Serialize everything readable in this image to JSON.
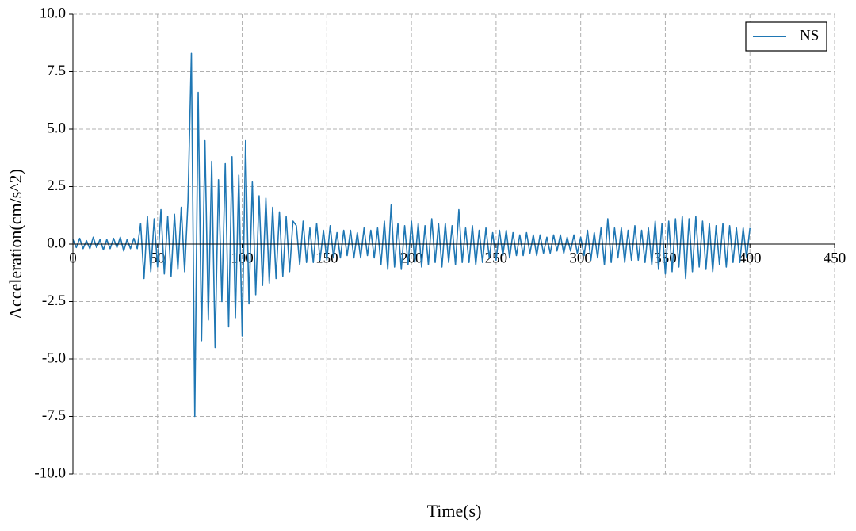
{
  "chart_data": {
    "type": "line",
    "x_label": "Time(s)",
    "y_label": "Acceleration(cm/s^2)",
    "xlim": [
      0,
      450
    ],
    "xticks": [
      0,
      50,
      100,
      150,
      200,
      250,
      300,
      350,
      400,
      450
    ],
    "ylim": [
      -10,
      10
    ],
    "yticks": [
      {
        "value": 10,
        "label": "10.0"
      },
      7.5,
      {
        "value": 5,
        "label": "5.0"
      },
      2.5,
      {
        "value": 0,
        "label": "0.0"
      },
      -2.5,
      {
        "value": -5,
        "label": "-5.0"
      },
      -7.5,
      {
        "value": -10,
        "label": "-10.0"
      }
    ],
    "grid": true,
    "legend": "upper right",
    "x": [
      0,
      2,
      4,
      6,
      8,
      10,
      12,
      14,
      16,
      18,
      20,
      22,
      24,
      26,
      28,
      30,
      32,
      34,
      36,
      38,
      40,
      42,
      44,
      46,
      48,
      50,
      52,
      54,
      56,
      58,
      60,
      62,
      64,
      66,
      68,
      70,
      72,
      74,
      76,
      78,
      80,
      82,
      84,
      86,
      88,
      90,
      92,
      94,
      96,
      98,
      100,
      102,
      104,
      106,
      108,
      110,
      112,
      114,
      116,
      118,
      120,
      122,
      124,
      126,
      128,
      130,
      132,
      134,
      136,
      138,
      140,
      142,
      144,
      146,
      148,
      150,
      152,
      154,
      156,
      158,
      160,
      162,
      164,
      166,
      168,
      170,
      172,
      174,
      176,
      178,
      180,
      182,
      184,
      186,
      188,
      190,
      192,
      194,
      196,
      198,
      200,
      202,
      204,
      206,
      208,
      210,
      212,
      214,
      216,
      218,
      220,
      222,
      224,
      226,
      228,
      230,
      232,
      234,
      236,
      238,
      240,
      242,
      244,
      246,
      248,
      250,
      252,
      254,
      256,
      258,
      260,
      262,
      264,
      266,
      268,
      270,
      272,
      274,
      276,
      278,
      280,
      282,
      284,
      286,
      288,
      290,
      292,
      294,
      296,
      298,
      300,
      302,
      304,
      306,
      308,
      310,
      312,
      314,
      316,
      318,
      320,
      322,
      324,
      326,
      328,
      330,
      332,
      334,
      336,
      338,
      340,
      342,
      344,
      346,
      348,
      350,
      352,
      354,
      356,
      358,
      360,
      362,
      364,
      366,
      368,
      370,
      372,
      374,
      376,
      378,
      380,
      382,
      384,
      386,
      388,
      390,
      392,
      394,
      396,
      398,
      400
    ],
    "series": [
      {
        "name": "NS",
        "color": "#1f77b4",
        "values": [
          0.2,
          -0.15,
          0.25,
          -0.2,
          0.15,
          -0.2,
          0.3,
          -0.15,
          0.2,
          -0.25,
          0.2,
          -0.2,
          0.25,
          -0.15,
          0.3,
          -0.3,
          0.2,
          -0.2,
          0.25,
          -0.2,
          0.9,
          -1.5,
          1.2,
          -1.2,
          1.1,
          -1.0,
          1.5,
          -1.3,
          1.2,
          -1.4,
          1.3,
          -1.1,
          1.6,
          -1.2,
          1.9,
          8.3,
          -7.5,
          6.6,
          -4.2,
          4.5,
          -3.3,
          3.6,
          -4.5,
          2.8,
          -2.5,
          3.5,
          -3.6,
          3.8,
          -3.2,
          3.0,
          -4.0,
          4.5,
          -2.6,
          2.7,
          -2.2,
          2.1,
          -1.8,
          2.0,
          -1.7,
          1.6,
          -1.5,
          1.4,
          -1.4,
          1.2,
          -1.2,
          1.0,
          0.8,
          -0.9,
          1.0,
          -0.8,
          0.7,
          -0.8,
          0.9,
          -0.7,
          0.6,
          -0.7,
          0.8,
          -0.6,
          0.5,
          -0.6,
          0.6,
          -0.5,
          0.6,
          -0.6,
          0.5,
          -0.6,
          0.7,
          -0.5,
          0.6,
          -0.6,
          0.7,
          -0.9,
          1.0,
          -1.1,
          1.7,
          -1.0,
          0.9,
          -1.1,
          0.8,
          -0.9,
          1.0,
          -0.8,
          0.9,
          -1.0,
          0.8,
          -0.9,
          1.1,
          -0.8,
          0.9,
          -1.0,
          0.9,
          -0.8,
          0.8,
          -0.9,
          1.5,
          -0.8,
          0.7,
          -0.8,
          0.8,
          -0.9,
          0.6,
          -0.8,
          0.7,
          -0.6,
          0.5,
          -0.7,
          0.6,
          -0.5,
          0.6,
          -0.6,
          0.5,
          -0.5,
          0.4,
          -0.5,
          0.5,
          -0.4,
          0.4,
          -0.5,
          0.4,
          -0.4,
          0.3,
          -0.4,
          0.4,
          -0.3,
          0.4,
          -0.4,
          0.3,
          -0.3,
          0.4,
          -0.4,
          0.3,
          -0.5,
          0.6,
          -0.7,
          0.5,
          -0.6,
          0.7,
          -0.9,
          1.1,
          -0.8,
          0.7,
          -0.6,
          0.7,
          -0.8,
          0.6,
          -0.7,
          0.8,
          -0.7,
          0.6,
          -0.8,
          0.7,
          -0.9,
          1.0,
          -1.1,
          0.9,
          -1.3,
          1.0,
          -1.2,
          1.1,
          -1.0,
          1.2,
          -1.5,
          1.1,
          -1.2,
          1.2,
          -1.0,
          1.0,
          -1.1,
          0.9,
          -1.2,
          0.8,
          -0.9,
          0.9,
          -1.0,
          0.8,
          -0.8,
          0.7,
          -0.8,
          0.7,
          -0.6,
          0.7
        ]
      }
    ]
  }
}
